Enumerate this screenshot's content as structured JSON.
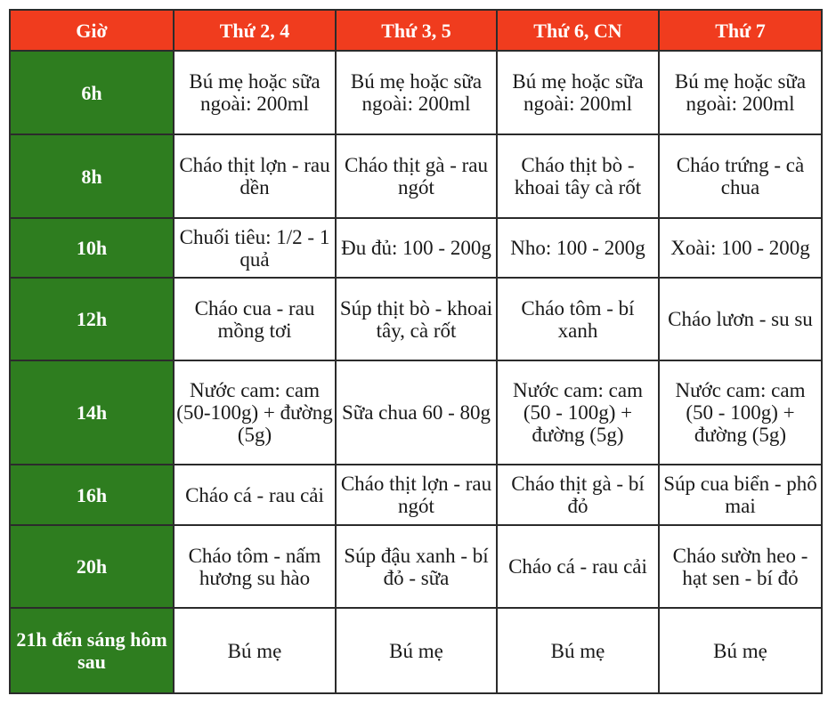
{
  "colors": {
    "header_bg": "#f03c1e",
    "time_col_bg": "#2e7d1f",
    "cell_bg": "#ffffff"
  },
  "headers": [
    "Giờ",
    "Thứ 2, 4",
    "Thứ 3, 5",
    "Thứ 6, CN",
    "Thứ 7"
  ],
  "rows": [
    {
      "time": "6h",
      "cells": [
        "Bú mẹ hoặc sữa ngoài: 200ml",
        "Bú mẹ hoặc sữa ngoài: 200ml",
        "Bú mẹ hoặc sữa ngoài: 200ml",
        "Bú mẹ hoặc sữa ngoài: 200ml"
      ]
    },
    {
      "time": "8h",
      "cells": [
        "Cháo thịt lợn - rau dền",
        "Cháo thịt gà - rau ngót",
        "Cháo thịt bò - khoai tây cà rốt",
        "Cháo trứng - cà chua"
      ]
    },
    {
      "time": "10h",
      "cells": [
        "Chuối tiêu: 1/2 - 1 quả",
        "Đu đủ: 100 - 200g",
        "Nho: 100 - 200g",
        "Xoài: 100 - 200g"
      ]
    },
    {
      "time": "12h",
      "cells": [
        "Cháo cua - rau mồng tơi",
        "Súp thịt bò - khoai tây, cà rốt",
        "Cháo tôm - bí xanh",
        "Cháo lươn - su su"
      ]
    },
    {
      "time": "14h",
      "cells": [
        "Nước cam: cam (50-100g) + đường (5g)",
        "Sữa chua 60 - 80g",
        "Nước cam: cam (50 - 100g) + đường (5g)",
        "Nước cam: cam (50 - 100g) + đường (5g)"
      ]
    },
    {
      "time": "16h",
      "cells": [
        "Cháo cá - rau cải",
        "Cháo thịt lợn - rau ngót",
        "Cháo thịt gà - bí đỏ",
        "Súp cua biển - phô mai"
      ]
    },
    {
      "time": "20h",
      "cells": [
        "Cháo tôm - nấm hương su hào",
        "Súp đậu xanh - bí đỏ - sữa",
        "Cháo cá - rau cải",
        "Cháo sườn heo - hạt sen - bí đỏ"
      ]
    },
    {
      "time": "21h đến sáng hôm sau",
      "cells": [
        "Bú mẹ",
        "Bú mẹ",
        "Bú mẹ",
        "Bú mẹ"
      ]
    }
  ]
}
